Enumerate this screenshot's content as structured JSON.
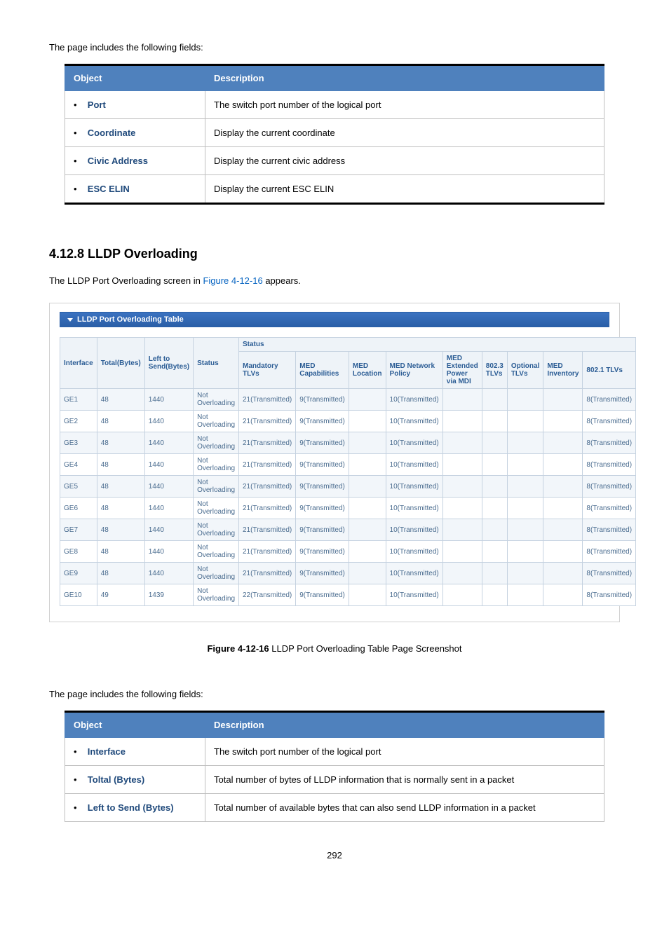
{
  "intro1": "The page includes the following fields:",
  "table1": {
    "head": {
      "obj": "Object",
      "desc": "Description"
    },
    "rows": [
      {
        "obj": "Port",
        "desc": "The switch port number of the logical port"
      },
      {
        "obj": "Coordinate",
        "desc": "Display the current coordinate"
      },
      {
        "obj": "Civic Address",
        "desc": "Display the current civic address"
      },
      {
        "obj": "ESC ELIN",
        "desc": "Display the current ESC ELIN"
      }
    ]
  },
  "section": {
    "title": "4.12.8 LLDP Overloading",
    "text_a": "The LLDP Port Overloading screen in ",
    "link": "Figure 4-12-16",
    "text_b": " appears."
  },
  "panel_title": "LLDP Port Overloading Table",
  "overload": {
    "head": {
      "interface": "Interface",
      "total": "Total(Bytes)",
      "left": "Left to Send(Bytes)",
      "status": "Status",
      "statusGroup": "Status",
      "mandatory": "Mandatory TLVs",
      "medcap": "MED Capabilities",
      "medloc": "MED Location",
      "mednet": "MED Network Policy",
      "medext": "MED Extended Power via MDI",
      "t8023": "802.3 TLVs",
      "optional": "Optional TLVs",
      "medinv": "MED Inventory",
      "t8021": "802.1 TLVs"
    },
    "rows": [
      {
        "iface": "GE1",
        "total": "48",
        "left": "1440",
        "status": "Not Overloading",
        "man": "21(Transmitted)",
        "cap": "9(Transmitted)",
        "loc": "",
        "net": "10(Transmitted)",
        "ext": "",
        "t3": "",
        "opt": "",
        "inv": "",
        "t1": "8(Transmitted)"
      },
      {
        "iface": "GE2",
        "total": "48",
        "left": "1440",
        "status": "Not Overloading",
        "man": "21(Transmitted)",
        "cap": "9(Transmitted)",
        "loc": "",
        "net": "10(Transmitted)",
        "ext": "",
        "t3": "",
        "opt": "",
        "inv": "",
        "t1": "8(Transmitted)"
      },
      {
        "iface": "GE3",
        "total": "48",
        "left": "1440",
        "status": "Not Overloading",
        "man": "21(Transmitted)",
        "cap": "9(Transmitted)",
        "loc": "",
        "net": "10(Transmitted)",
        "ext": "",
        "t3": "",
        "opt": "",
        "inv": "",
        "t1": "8(Transmitted)"
      },
      {
        "iface": "GE4",
        "total": "48",
        "left": "1440",
        "status": "Not Overloading",
        "man": "21(Transmitted)",
        "cap": "9(Transmitted)",
        "loc": "",
        "net": "10(Transmitted)",
        "ext": "",
        "t3": "",
        "opt": "",
        "inv": "",
        "t1": "8(Transmitted)"
      },
      {
        "iface": "GE5",
        "total": "48",
        "left": "1440",
        "status": "Not Overloading",
        "man": "21(Transmitted)",
        "cap": "9(Transmitted)",
        "loc": "",
        "net": "10(Transmitted)",
        "ext": "",
        "t3": "",
        "opt": "",
        "inv": "",
        "t1": "8(Transmitted)"
      },
      {
        "iface": "GE6",
        "total": "48",
        "left": "1440",
        "status": "Not Overloading",
        "man": "21(Transmitted)",
        "cap": "9(Transmitted)",
        "loc": "",
        "net": "10(Transmitted)",
        "ext": "",
        "t3": "",
        "opt": "",
        "inv": "",
        "t1": "8(Transmitted)"
      },
      {
        "iface": "GE7",
        "total": "48",
        "left": "1440",
        "status": "Not Overloading",
        "man": "21(Transmitted)",
        "cap": "9(Transmitted)",
        "loc": "",
        "net": "10(Transmitted)",
        "ext": "",
        "t3": "",
        "opt": "",
        "inv": "",
        "t1": "8(Transmitted)"
      },
      {
        "iface": "GE8",
        "total": "48",
        "left": "1440",
        "status": "Not Overloading",
        "man": "21(Transmitted)",
        "cap": "9(Transmitted)",
        "loc": "",
        "net": "10(Transmitted)",
        "ext": "",
        "t3": "",
        "opt": "",
        "inv": "",
        "t1": "8(Transmitted)"
      },
      {
        "iface": "GE9",
        "total": "48",
        "left": "1440",
        "status": "Not Overloading",
        "man": "21(Transmitted)",
        "cap": "9(Transmitted)",
        "loc": "",
        "net": "10(Transmitted)",
        "ext": "",
        "t3": "",
        "opt": "",
        "inv": "",
        "t1": "8(Transmitted)"
      },
      {
        "iface": "GE10",
        "total": "49",
        "left": "1439",
        "status": "Not Overloading",
        "man": "22(Transmitted)",
        "cap": "9(Transmitted)",
        "loc": "",
        "net": "10(Transmitted)",
        "ext": "",
        "t3": "",
        "opt": "",
        "inv": "",
        "t1": "8(Transmitted)"
      }
    ]
  },
  "figure": {
    "no": "Figure 4-12-16",
    "text": " LLDP Port Overloading Table Page Screenshot"
  },
  "intro2": "The page includes the following fields:",
  "table2": {
    "head": {
      "obj": "Object",
      "desc": "Description"
    },
    "rows": [
      {
        "obj": "Interface",
        "desc": "The switch port number of the logical port"
      },
      {
        "obj": "Toltal (Bytes)",
        "desc": "Total number of bytes of LLDP information that is normally sent in a packet"
      },
      {
        "obj": "Left to Send (Bytes)",
        "desc": "Total number of available bytes that can also send LLDP information in a packet"
      }
    ]
  },
  "page_no": "292"
}
